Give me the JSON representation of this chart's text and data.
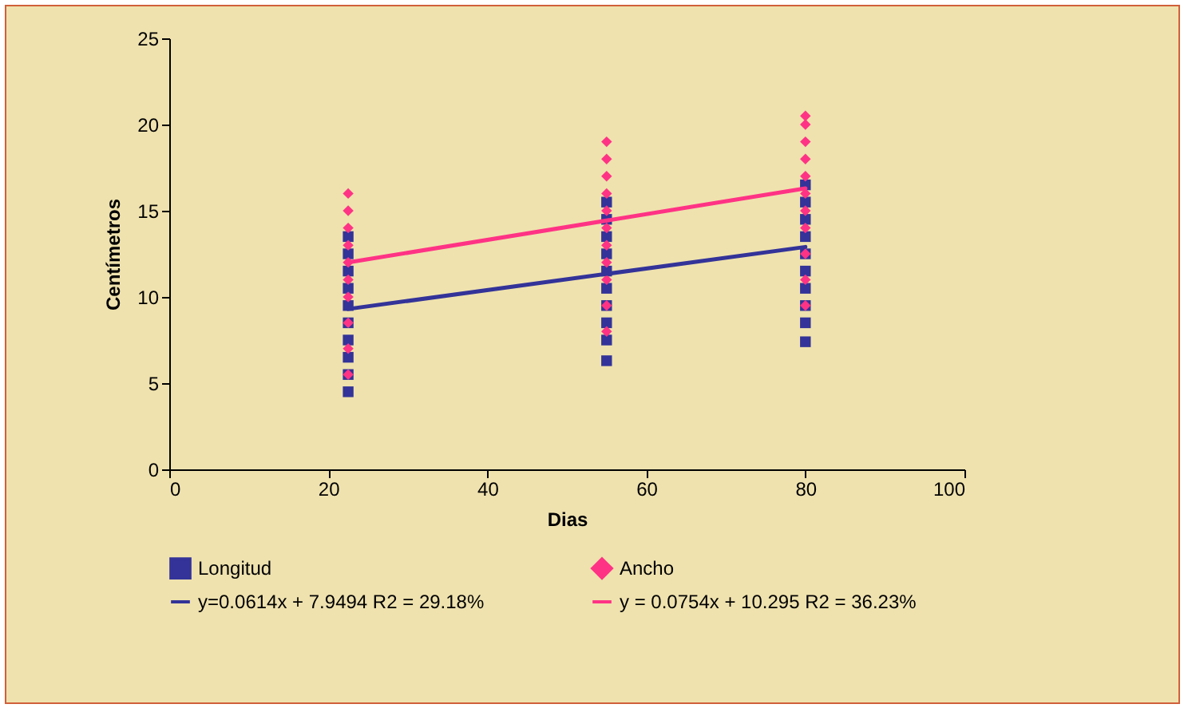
{
  "chart_data": {
    "type": "scatter",
    "xlabel": "Dias",
    "ylabel": "Centímetros",
    "xlim": [
      0,
      100
    ],
    "xticks": [
      0,
      20,
      40,
      60,
      80,
      100
    ],
    "ylim": [
      0,
      25
    ],
    "yticks": [
      0,
      5,
      10,
      15,
      20,
      25
    ],
    "grid": false,
    "legend": "bottom",
    "series": [
      {
        "name": "Longitud",
        "color": "#333399",
        "marker": "square",
        "x": [
          22.5,
          22.5,
          22.5,
          22.5,
          22.5,
          22.5,
          22.5,
          22.5,
          22.5,
          22.5,
          55,
          55,
          55,
          55,
          55,
          55,
          55,
          55,
          55,
          55,
          80,
          80,
          80,
          80,
          80,
          80,
          80,
          80,
          80,
          80
        ],
        "values": [
          4.5,
          5.5,
          6.5,
          7.5,
          8.5,
          9.5,
          10.5,
          11.5,
          12.5,
          13.5,
          6.3,
          7.5,
          8.5,
          9.5,
          10.5,
          11.5,
          12.5,
          13.5,
          14.5,
          15.5,
          7.4,
          8.5,
          9.5,
          10.5,
          11.5,
          12.5,
          13.5,
          14.5,
          15.5,
          16.5
        ]
      },
      {
        "name": "Ancho",
        "color": "#ff3385",
        "marker": "diamond",
        "x": [
          22.5,
          22.5,
          22.5,
          22.5,
          22.5,
          22.5,
          22.5,
          22.5,
          22.5,
          22.5,
          55,
          55,
          55,
          55,
          55,
          55,
          55,
          55,
          55,
          55,
          55,
          80,
          80,
          80,
          80,
          80,
          80,
          80,
          80,
          80,
          80,
          80
        ],
        "values": [
          5.5,
          7,
          8.5,
          10,
          11,
          12,
          13,
          14,
          15,
          16,
          8,
          9.5,
          11,
          12,
          13,
          14,
          15,
          16,
          17,
          18,
          19,
          9.5,
          11,
          12.5,
          14,
          15,
          16,
          17,
          18,
          19,
          20,
          20.5
        ]
      },
      {
        "name": "y=0.0614x + 7.9494  R2 = 29.18%",
        "type": "line",
        "color": "#333399",
        "line_style": "solid",
        "x": [
          22.5,
          80
        ],
        "values": [
          9.3,
          12.9
        ]
      },
      {
        "name": "y = 0.0754x + 10.295  R2 = 36.23%",
        "type": "line",
        "color": "#ff3385",
        "line_style": "solid",
        "x": [
          22.5,
          80
        ],
        "values": [
          12,
          16.3
        ]
      }
    ]
  }
}
